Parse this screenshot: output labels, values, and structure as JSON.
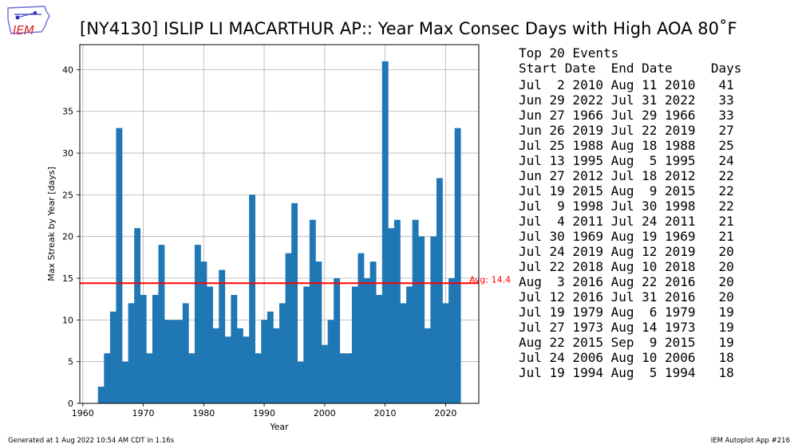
{
  "logo": {
    "text": "IEM",
    "icon": "iowa-state-outline-logo"
  },
  "title": "[NY4130] ISLIP LI MACARTHUR AP:: Year Max Consec Days with High AOA 80˚F",
  "chart_data": {
    "type": "bar",
    "xlabel": "Year",
    "ylabel": "Max Streak by Year [days]",
    "xlim": [
      1959.5,
      2025.5
    ],
    "ylim": [
      0,
      43
    ],
    "xticks": [
      1960,
      1970,
      1980,
      1990,
      2000,
      2010,
      2020
    ],
    "yticks": [
      0,
      5,
      10,
      15,
      20,
      25,
      30,
      35,
      40
    ],
    "grid": true,
    "bar_color": "#1f77b4",
    "average": {
      "value": 14.4,
      "label": "Avg: 14.4",
      "color": "#ff0000"
    },
    "x": [
      1963,
      1964,
      1965,
      1966,
      1967,
      1968,
      1969,
      1970,
      1971,
      1972,
      1973,
      1974,
      1975,
      1976,
      1977,
      1978,
      1979,
      1980,
      1981,
      1982,
      1983,
      1984,
      1985,
      1986,
      1987,
      1988,
      1989,
      1990,
      1991,
      1992,
      1993,
      1994,
      1995,
      1996,
      1997,
      1998,
      1999,
      2000,
      2001,
      2002,
      2003,
      2004,
      2005,
      2006,
      2007,
      2008,
      2009,
      2010,
      2011,
      2012,
      2013,
      2014,
      2015,
      2016,
      2017,
      2018,
      2019,
      2020,
      2021,
      2022
    ],
    "values": [
      2,
      6,
      11,
      33,
      5,
      12,
      21,
      13,
      6,
      13,
      19,
      10,
      10,
      10,
      12,
      6,
      19,
      17,
      14,
      9,
      16,
      8,
      13,
      9,
      8,
      25,
      6,
      10,
      11,
      9,
      12,
      18,
      24,
      5,
      14,
      22,
      17,
      7,
      10,
      15,
      6,
      6,
      14,
      18,
      15,
      17,
      13,
      41,
      21,
      22,
      12,
      14,
      22,
      20,
      9,
      20,
      27,
      12,
      15,
      33
    ]
  },
  "events": {
    "title": "Top 20 Events",
    "header": "Start Date  End Date     Days",
    "rows": [
      "Jul  2 2010 Aug 11 2010   41",
      "Jun 29 2022 Jul 31 2022   33",
      "Jun 27 1966 Jul 29 1966   33",
      "Jun 26 2019 Jul 22 2019   27",
      "Jul 25 1988 Aug 18 1988   25",
      "Jul 13 1995 Aug  5 1995   24",
      "Jun 27 2012 Jul 18 2012   22",
      "Jul 19 2015 Aug  9 2015   22",
      "Jul  9 1998 Jul 30 1998   22",
      "Jul  4 2011 Jul 24 2011   21",
      "Jul 30 1969 Aug 19 1969   21",
      "Jul 24 2019 Aug 12 2019   20",
      "Jul 22 2018 Aug 10 2018   20",
      "Aug  3 2016 Aug 22 2016   20",
      "Jul 12 2016 Jul 31 2016   20",
      "Jul 19 1979 Aug  6 1979   19",
      "Jul 27 1973 Aug 14 1973   19",
      "Aug 22 2015 Sep  9 2015   19",
      "Jul 24 2006 Aug 10 2006   18",
      "Jul 19 1994 Aug  5 1994   18"
    ]
  },
  "footer": {
    "generated": "Generated at 1 Aug 2022 10:54 AM CDT in 1.16s",
    "app": "IEM Autoplot App #216"
  }
}
